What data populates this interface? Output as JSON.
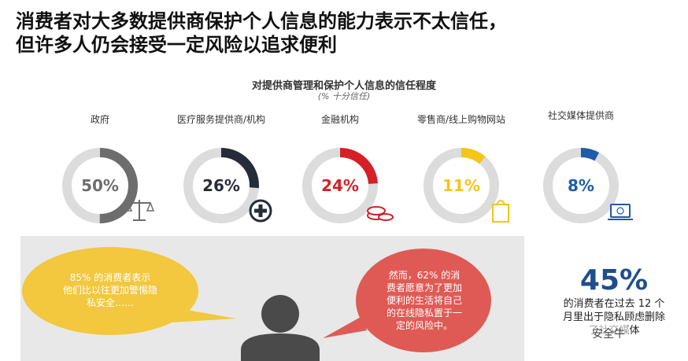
{
  "title": {
    "line1": "消费者对大多数提供商保护个人信息的能力表示不太信任，",
    "line2": "但许多人仍会接受一定风险以追求便利"
  },
  "chart_data": {
    "type": "donut",
    "title": "对提供商管理和保护个人信息的信任程度",
    "subtitle": "(% 十分信任)",
    "categories": [
      "政府",
      "医疗服务提供商/机构",
      "金融机构",
      "零售商/线上购物网站",
      "社交媒体提供商"
    ],
    "values": [
      50,
      26,
      24,
      11,
      8
    ],
    "labels": [
      "50%",
      "26%",
      "24%",
      "11%",
      "8%"
    ],
    "colors": [
      "#6d6d6d",
      "#262c3a",
      "#d62027",
      "#f5c518",
      "#1f5ca8"
    ],
    "icons": [
      "scales-icon",
      "medical-cross-icon",
      "coins-icon",
      "shopping-bag-icon",
      "laptop-icon"
    ]
  },
  "callouts": {
    "left": {
      "line1": "85% 的消费者表示",
      "line2": "他们比以往更加警惕隐",
      "line3": "私安全……",
      "color": "#f3c73e"
    },
    "right": {
      "line1": "然而，62% 的消",
      "line2": "费者愿意为了更加",
      "line3": "便利的生活将自己",
      "line4": "的在线隐私置于一",
      "line5": "定的风险中。",
      "color": "#e05a55"
    },
    "stat": {
      "value": "45%",
      "line1": "的消费者在过去 12 个",
      "line2": "月里出于隐私顾虑删除",
      "line3": "了社交媒体"
    }
  },
  "watermark": "安全牛"
}
